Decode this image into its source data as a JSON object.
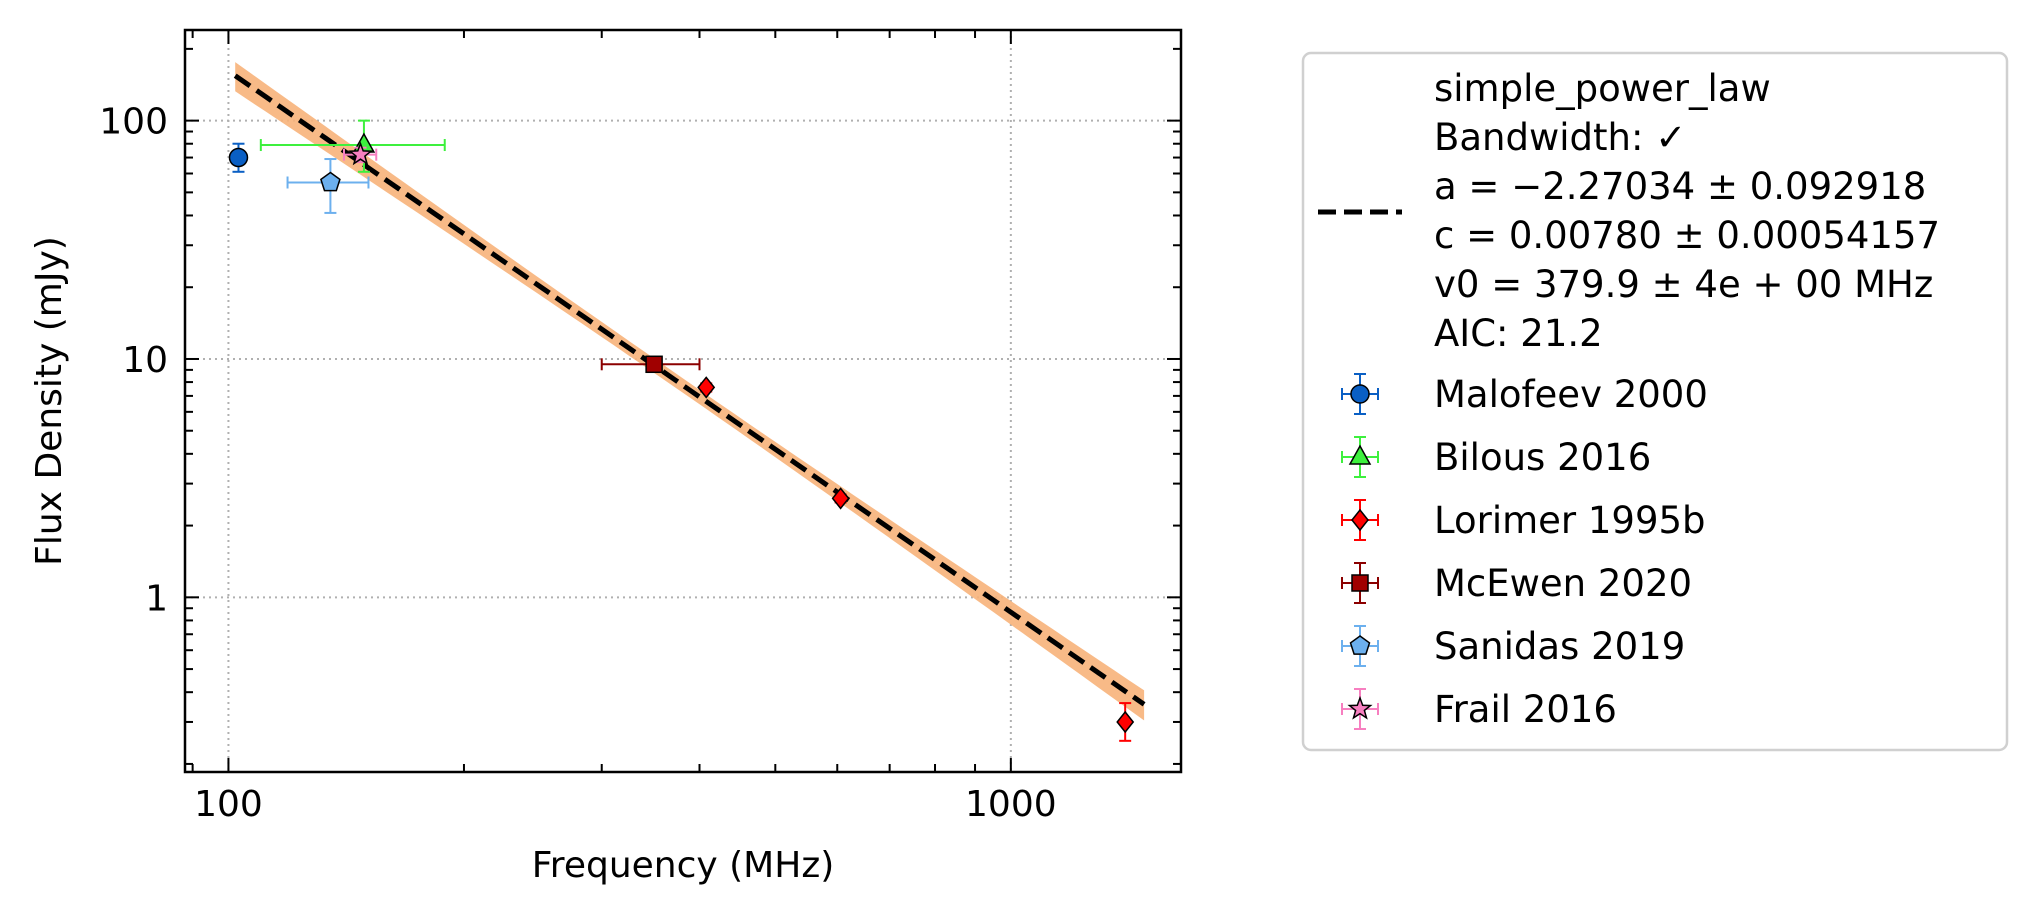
{
  "chart_data": {
    "type": "scatter",
    "xlabel": "Frequency (MHz)",
    "ylabel": "Flux Density (mJy)",
    "xscale": "log",
    "yscale": "log",
    "xlim": [
      88,
      1650
    ],
    "ylim": [
      0.185,
      240
    ],
    "grid": "on (dotted)",
    "legend_position": "outside right",
    "x_ticks": [
      {
        "value": 100,
        "label": "100"
      },
      {
        "value": 1000,
        "label": "1000"
      }
    ],
    "y_ticks": [
      {
        "value": 1,
        "label": "1"
      },
      {
        "value": 10,
        "label": "10"
      },
      {
        "value": 100,
        "label": "100"
      }
    ],
    "fit": {
      "model": "simple_power_law",
      "lines": [
        "simple_power_law",
        "Bandwidth: ✓",
        "a = −2.27034 ± 0.092918",
        "c = 0.00780 ± 0.00054157",
        "v0 = 379.9 ± 4e + 00 MHz",
        "AIC: 21.2"
      ],
      "a": -2.27034,
      "c": 0.0078,
      "v0": 379.9,
      "x_range": [
        102,
        1480
      ],
      "band_color": "#f7b37a",
      "line_color": "#000000"
    },
    "series": [
      {
        "name": "Malofeev 2000",
        "marker": "circle",
        "color": "#0a5fc4",
        "ecolor": "#0a5fc4",
        "points": [
          {
            "x": 103,
            "y": 70,
            "xerr": [
              0,
              0
            ],
            "yerr": [
              9,
              10
            ]
          }
        ]
      },
      {
        "name": "Bilous 2016",
        "marker": "triangle",
        "color": "#3df03d",
        "ecolor": "#3df03d",
        "points": [
          {
            "x": 149,
            "y": 79,
            "xerr": [
              39,
              40
            ],
            "yerr": [
              18,
              21
            ]
          }
        ]
      },
      {
        "name": "Lorimer 1995b",
        "marker": "diamond",
        "color": "#ff0000",
        "ecolor": "#ff0000",
        "points": [
          {
            "x": 408,
            "y": 7.6,
            "xerr": [
              0,
              0
            ],
            "yerr": [
              0.3,
              0.3
            ]
          },
          {
            "x": 606,
            "y": 2.6,
            "xerr": [
              0,
              0
            ],
            "yerr": [
              0.1,
              0.1
            ]
          },
          {
            "x": 1400,
            "y": 0.3,
            "xerr": [
              0,
              0
            ],
            "yerr": [
              0.05,
              0.06
            ]
          }
        ]
      },
      {
        "name": "McEwen 2020",
        "marker": "square",
        "color": "#a00000",
        "ecolor": "#8b0000",
        "points": [
          {
            "x": 350,
            "y": 9.5,
            "xerr": [
              50,
              50
            ],
            "yerr": [
              0.5,
              0.5
            ]
          }
        ]
      },
      {
        "name": "Sanidas 2019",
        "marker": "pentagon",
        "color": "#6cb0ee",
        "ecolor": "#6cb0ee",
        "points": [
          {
            "x": 135,
            "y": 55,
            "xerr": [
              16,
              16
            ],
            "yerr": [
              14,
              14
            ]
          }
        ]
      },
      {
        "name": "Frail 2016",
        "marker": "star",
        "color": "#f77fc0",
        "ecolor": "#f77fc0",
        "points": [
          {
            "x": 147.5,
            "y": 72,
            "xerr": [
              7,
              7
            ],
            "yerr": [
              5,
              5
            ]
          }
        ]
      }
    ]
  }
}
